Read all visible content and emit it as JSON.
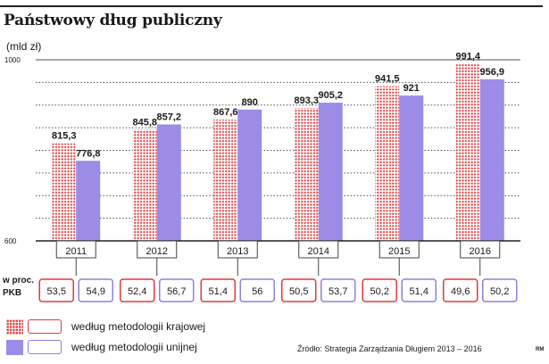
{
  "header": {
    "title": "Państwowy dług publiczny",
    "unit": "(mld zł)"
  },
  "colors": {
    "national": "#e0393a",
    "eu": "#9c8ce8",
    "eu_box": "#8f80dc"
  },
  "chart_data": {
    "type": "bar",
    "title": "Państwowy dług publiczny",
    "ylabel": "(mld zł)",
    "ylim": [
      600,
      1000
    ],
    "yticks": [
      600,
      1000
    ],
    "categories": [
      "2011",
      "2012",
      "2013",
      "2014",
      "2015",
      "2016"
    ],
    "series": [
      {
        "name": "według metodologii krajowej",
        "values": [
          815.3,
          845.8,
          867.6,
          893.3,
          941.5,
          991.4
        ],
        "labels": [
          "815,3",
          "845,8",
          "867,6",
          "893,3",
          "941,5",
          "991,4"
        ]
      },
      {
        "name": "według metodologii unijnej",
        "values": [
          776.8,
          857.2,
          890,
          905.2,
          921,
          956.9
        ],
        "labels": [
          "776,8",
          "857,2",
          "890",
          "905,2",
          "921",
          "956,9"
        ]
      }
    ],
    "pkb": {
      "label": "w proc. PKB",
      "national": [
        "53,5",
        "52,4",
        "51,4",
        "50,5",
        "50,2",
        "49,6"
      ],
      "eu": [
        "54,9",
        "56,7",
        "56",
        "53,7",
        "51,4",
        "50,2"
      ]
    }
  },
  "legend": {
    "national": "według metodologii krajowej",
    "eu": "według metodologii unijnej"
  },
  "source": "Źródło: Strategia Zarządzania Długiem 2013 – 2016",
  "credit": "RM"
}
